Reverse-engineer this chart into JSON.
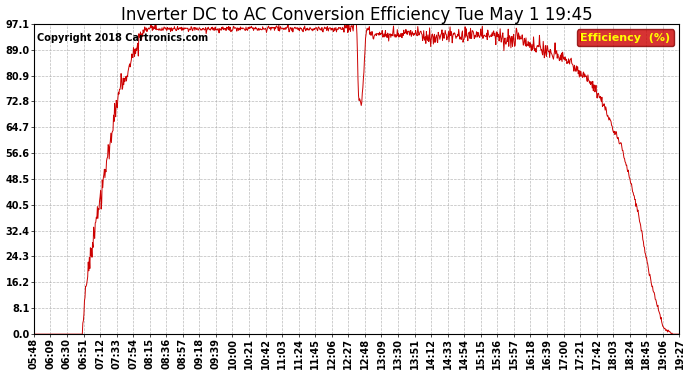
{
  "title": "Inverter DC to AC Conversion Efficiency Tue May 1 19:45",
  "copyright": "Copyright 2018 Cartronics.com",
  "legend_label": "Efficiency  (%)",
  "legend_bg": "#cc0000",
  "legend_text_color": "#ffff00",
  "line_color": "#cc0000",
  "bg_color": "#ffffff",
  "plot_bg_color": "#ffffff",
  "grid_color": "#aaaaaa",
  "y_ticks": [
    0.0,
    8.1,
    16.2,
    24.3,
    32.4,
    40.5,
    48.5,
    56.6,
    64.7,
    72.8,
    80.9,
    89.0,
    97.1
  ],
  "x_tick_labels": [
    "05:48",
    "06:09",
    "06:30",
    "06:51",
    "07:12",
    "07:33",
    "07:54",
    "08:15",
    "08:36",
    "08:57",
    "09:18",
    "09:39",
    "10:00",
    "10:21",
    "10:42",
    "11:03",
    "11:24",
    "11:45",
    "12:06",
    "12:27",
    "12:48",
    "13:09",
    "13:30",
    "13:51",
    "14:12",
    "14:33",
    "14:54",
    "15:15",
    "15:36",
    "15:57",
    "16:18",
    "16:39",
    "17:00",
    "17:21",
    "17:42",
    "18:03",
    "18:24",
    "18:45",
    "19:06",
    "19:27"
  ],
  "title_fontsize": 12,
  "copyright_fontsize": 7,
  "tick_fontsize": 7,
  "ymax": 97.1,
  "ymin": 0.0,
  "figwidth": 6.9,
  "figheight": 3.75,
  "dpi": 100
}
